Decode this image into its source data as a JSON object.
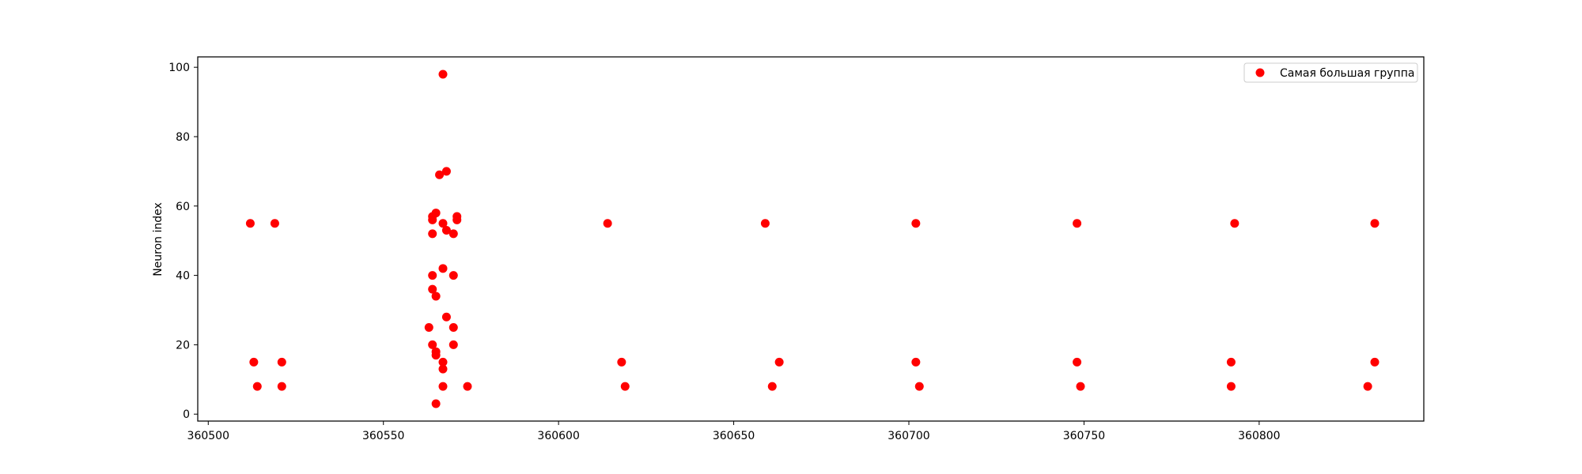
{
  "chart_data": {
    "type": "scatter",
    "title": "",
    "xlabel": "",
    "ylabel": "Neuron index",
    "xlim": [
      360497,
      360847
    ],
    "ylim": [
      -2,
      103
    ],
    "xticks": [
      360500,
      360550,
      360600,
      360650,
      360700,
      360750,
      360800
    ],
    "yticks": [
      0,
      20,
      40,
      60,
      80,
      100
    ],
    "grid": false,
    "legend_position": "top-right",
    "series": [
      {
        "name": "Самая большая группа",
        "color": "#ff0000",
        "marker": "circle",
        "points": [
          [
            360512,
            55
          ],
          [
            360519,
            55
          ],
          [
            360513,
            15
          ],
          [
            360514,
            8
          ],
          [
            360521,
            15
          ],
          [
            360521,
            8
          ],
          [
            360567,
            98
          ],
          [
            360566,
            69
          ],
          [
            360568,
            70
          ],
          [
            360565,
            58
          ],
          [
            360564,
            57
          ],
          [
            360564,
            56
          ],
          [
            360567,
            55
          ],
          [
            360568,
            53
          ],
          [
            360564,
            52
          ],
          [
            360571,
            57
          ],
          [
            360571,
            56
          ],
          [
            360570,
            52
          ],
          [
            360567,
            42
          ],
          [
            360564,
            40
          ],
          [
            360570,
            40
          ],
          [
            360564,
            36
          ],
          [
            360565,
            34
          ],
          [
            360568,
            28
          ],
          [
            360563,
            25
          ],
          [
            360570,
            25
          ],
          [
            360564,
            20
          ],
          [
            360570,
            20
          ],
          [
            360565,
            18
          ],
          [
            360565,
            17
          ],
          [
            360567,
            15
          ],
          [
            360567,
            13
          ],
          [
            360567,
            8
          ],
          [
            360574,
            8
          ],
          [
            360565,
            3
          ],
          [
            360614,
            55
          ],
          [
            360618,
            15
          ],
          [
            360619,
            8
          ],
          [
            360659,
            55
          ],
          [
            360663,
            15
          ],
          [
            360661,
            8
          ],
          [
            360702,
            55
          ],
          [
            360702,
            15
          ],
          [
            360703,
            8
          ],
          [
            360748,
            55
          ],
          [
            360748,
            15
          ],
          [
            360749,
            8
          ],
          [
            360793,
            55
          ],
          [
            360792,
            15
          ],
          [
            360792,
            8
          ],
          [
            360833,
            55
          ],
          [
            360833,
            15
          ],
          [
            360831,
            8
          ]
        ]
      }
    ]
  }
}
